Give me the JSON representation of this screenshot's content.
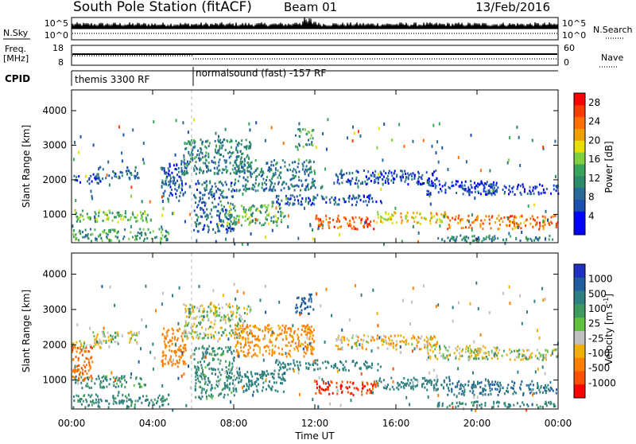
{
  "header": {
    "station": "South Pole Station (fitACF)",
    "beam": "Beam 01",
    "date": "13/Feb/2016"
  },
  "panels": {
    "nsky_label": "N.Sky",
    "nsearch_label": "N.Search",
    "freq_label": "Freq.",
    "freq_unit": "[MHz]",
    "nave_label": "Nave",
    "cpid_label": "CPID",
    "nsky_ticks": [
      "10^5",
      "10^0"
    ],
    "nsearch_ticks": [
      "10^5",
      "10^0"
    ],
    "freq_ticks": [
      "18",
      "8"
    ],
    "nave_ticks": [
      "60",
      "0"
    ],
    "cpid_segments": [
      {
        "label": "themis 3300 RF",
        "start_hour": 0
      },
      {
        "label": "normalsound (fast) -157 RF",
        "start_hour": 6
      }
    ]
  },
  "axes": {
    "ylabel": "Slant Range [km]",
    "yticks": [
      1000,
      2000,
      3000,
      4000
    ],
    "xlabel": "Time UT",
    "xticks": [
      "00:00",
      "04:00",
      "08:00",
      "12:00",
      "16:00",
      "20:00",
      "00:00"
    ],
    "xtick_hours": [
      0,
      4,
      8,
      12,
      16,
      20,
      24
    ]
  },
  "colorbars": {
    "power": {
      "title": "Power [dB]",
      "ticks": [
        "4",
        "8",
        "12",
        "16",
        "20",
        "24",
        "28"
      ],
      "colors": [
        "#0000ff",
        "#0000ff",
        "#1b4fb0",
        "#2a6a9a",
        "#2e8a6a",
        "#3aa55a",
        "#7fd040",
        "#e8e000",
        "#f0a000",
        "#ff7000",
        "#ff3c00",
        "#ff0000"
      ]
    },
    "velocity": {
      "title": "Velocity [m s^-1]",
      "ticks": [
        "1000",
        "500",
        "100",
        "25",
        "-25",
        "-100",
        "-500",
        "-1000"
      ],
      "colors": [
        "#2030c0",
        "#1f5fa0",
        "#2e7f80",
        "#3f9a60",
        "#60c040",
        "#c0c0c0",
        "#f0b000",
        "#ff8000",
        "#ff5000",
        "#ff0000"
      ]
    }
  },
  "chart_data": [
    {
      "type": "heatmap",
      "name": "power",
      "xlabel": "Time UT",
      "ylabel": "Slant Range [km]",
      "xlim": [
        0,
        24
      ],
      "ylim": [
        180,
        4600
      ],
      "colorbar_label": "Power [dB]",
      "scatter_bands": [
        {
          "t0": 0.0,
          "t1": 1.7,
          "r0": 1900,
          "r1": 2150,
          "v": 8
        },
        {
          "t0": 1.0,
          "t1": 3.3,
          "r0": 2050,
          "r1": 2400,
          "v": 10
        },
        {
          "t0": 0.1,
          "t1": 3.8,
          "r0": 800,
          "r1": 1150,
          "v": 16
        },
        {
          "t0": 0.0,
          "t1": 4.8,
          "r0": 260,
          "r1": 620,
          "v": 14
        },
        {
          "t0": 4.4,
          "t1": 5.6,
          "r0": 1400,
          "r1": 2500,
          "v": 9
        },
        {
          "t0": 5.5,
          "t1": 8.8,
          "r0": 2200,
          "r1": 3200,
          "v": 12
        },
        {
          "t0": 6.0,
          "t1": 8.0,
          "r0": 500,
          "r1": 2000,
          "v": 10
        },
        {
          "t0": 7.5,
          "t1": 10.5,
          "r0": 700,
          "r1": 1300,
          "v": 15
        },
        {
          "t0": 8.0,
          "t1": 12.0,
          "r0": 1700,
          "r1": 2600,
          "v": 11
        },
        {
          "t0": 11.0,
          "t1": 11.9,
          "r0": 2900,
          "r1": 3500,
          "v": 14
        },
        {
          "t0": 10.0,
          "t1": 15.3,
          "r0": 1300,
          "r1": 1600,
          "v": 9
        },
        {
          "t0": 12.0,
          "t1": 15.0,
          "r0": 600,
          "r1": 1000,
          "v": 26
        },
        {
          "t0": 15.0,
          "t1": 18.5,
          "r0": 750,
          "r1": 1100,
          "v": 20
        },
        {
          "t0": 13.0,
          "t1": 18.0,
          "r0": 1900,
          "r1": 2300,
          "v": 8
        },
        {
          "t0": 17.5,
          "t1": 21.0,
          "r0": 1600,
          "r1": 2000,
          "v": 7
        },
        {
          "t0": 19.5,
          "t1": 24.0,
          "r0": 1600,
          "r1": 1900,
          "v": 8
        },
        {
          "t0": 18.5,
          "t1": 24.0,
          "r0": 600,
          "r1": 1000,
          "v": 24
        },
        {
          "t0": 18.0,
          "t1": 24.0,
          "r0": 250,
          "r1": 420,
          "v": 12
        }
      ]
    },
    {
      "type": "heatmap",
      "name": "velocity",
      "xlabel": "Time UT",
      "ylabel": "Slant Range [km]",
      "xlim": [
        0,
        24
      ],
      "ylim": [
        180,
        4600
      ],
      "colorbar_label": "Velocity [m s^-1]",
      "scatter_bands": [
        {
          "t0": 0.0,
          "t1": 1.7,
          "r0": 1900,
          "r1": 2150,
          "v": 0
        },
        {
          "t0": 1.0,
          "t1": 3.3,
          "r0": 2050,
          "r1": 2400,
          "v": 0
        },
        {
          "t0": 0.1,
          "t1": 3.8,
          "r0": 800,
          "r1": 1150,
          "v": 150
        },
        {
          "t0": 0.0,
          "t1": 1.0,
          "r0": 1000,
          "r1": 2000,
          "v": -400
        },
        {
          "t0": 0.0,
          "t1": 4.8,
          "r0": 260,
          "r1": 620,
          "v": 200
        },
        {
          "t0": 4.4,
          "t1": 5.6,
          "r0": 1400,
          "r1": 2500,
          "v": -200
        },
        {
          "t0": 5.5,
          "t1": 8.8,
          "r0": 2200,
          "r1": 3200,
          "v": 0
        },
        {
          "t0": 6.0,
          "t1": 8.0,
          "r0": 500,
          "r1": 2000,
          "v": 150
        },
        {
          "t0": 7.5,
          "t1": 10.5,
          "r0": 700,
          "r1": 1300,
          "v": 300
        },
        {
          "t0": 8.0,
          "t1": 12.0,
          "r0": 1700,
          "r1": 2600,
          "v": -150
        },
        {
          "t0": 11.0,
          "t1": 11.9,
          "r0": 2900,
          "r1": 3500,
          "v": 500
        },
        {
          "t0": 10.0,
          "t1": 15.3,
          "r0": 1300,
          "r1": 1600,
          "v": 300
        },
        {
          "t0": 12.0,
          "t1": 15.0,
          "r0": 600,
          "r1": 1000,
          "v": -800
        },
        {
          "t0": 15.0,
          "t1": 18.5,
          "r0": 750,
          "r1": 1100,
          "v": 300
        },
        {
          "t0": 13.0,
          "t1": 18.0,
          "r0": 1900,
          "r1": 2300,
          "v": -60
        },
        {
          "t0": 17.5,
          "t1": 21.0,
          "r0": 1600,
          "r1": 2000,
          "v": 0
        },
        {
          "t0": 19.5,
          "t1": 24.0,
          "r0": 1600,
          "r1": 1900,
          "v": 0
        },
        {
          "t0": 18.5,
          "t1": 24.0,
          "r0": 600,
          "r1": 1000,
          "v": 400
        },
        {
          "t0": 18.0,
          "t1": 24.0,
          "r0": 250,
          "r1": 420,
          "v": 200
        }
      ]
    }
  ]
}
